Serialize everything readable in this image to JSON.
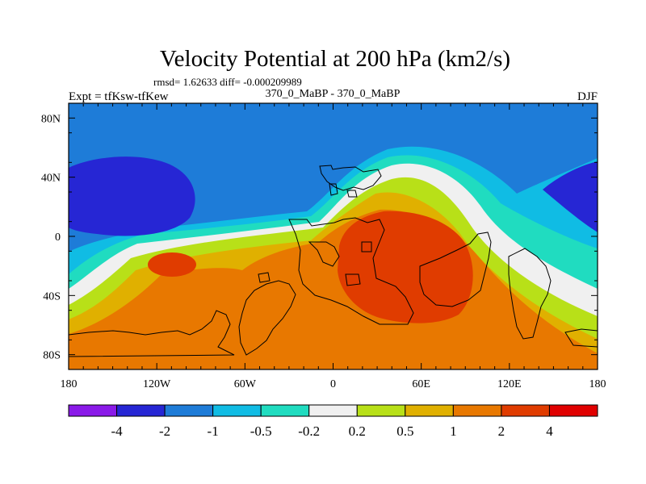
{
  "chart_data": {
    "type": "heatmap",
    "title": "Velocity Potential at 200 hPa (km2/s)",
    "subtitle": "rmsd= 1.62633 diff= -0.000209989",
    "left_label": "Expt = tfKsw-tfKew",
    "center_label": "370_0_MaBP - 370_0_MaBP",
    "right_label": "DJF",
    "x_ticks": [
      {
        "value": -180,
        "label": "180"
      },
      {
        "value": -120,
        "label": "120W"
      },
      {
        "value": -60,
        "label": "60W"
      },
      {
        "value": 0,
        "label": "0"
      },
      {
        "value": 60,
        "label": "60E"
      },
      {
        "value": 120,
        "label": "120E"
      },
      {
        "value": 180,
        "label": "180"
      }
    ],
    "y_ticks": [
      {
        "value": 80,
        "label": "80N"
      },
      {
        "value": 40,
        "label": "40N"
      },
      {
        "value": 0,
        "label": "0"
      },
      {
        "value": -40,
        "label": "40S"
      },
      {
        "value": -80,
        "label": "80S"
      }
    ],
    "xlim": [
      -180,
      180
    ],
    "ylim": [
      -90,
      90
    ],
    "colorbar": {
      "colors": [
        "#8a1ae8",
        "#2626d4",
        "#1e7cd8",
        "#10bce4",
        "#20dcc0",
        "#f0f0f0",
        "#b8e018",
        "#e0b000",
        "#e87800",
        "#e03c00",
        "#e00000"
      ],
      "labels": [
        "-4",
        "-2",
        "-1",
        "-0.5",
        "-0.2",
        "0.2",
        "0.5",
        "1",
        "2",
        "4"
      ]
    },
    "regions": [
      {
        "name": "negative-high-latitude",
        "level": "-2 to -1"
      },
      {
        "name": "strong-negative-west",
        "level": "< -2"
      },
      {
        "name": "strong-negative-east",
        "level": "< -2"
      },
      {
        "name": "positive-south",
        "level": "1 to 2"
      },
      {
        "name": "positive-core",
        "level": "2 to 4"
      }
    ]
  }
}
